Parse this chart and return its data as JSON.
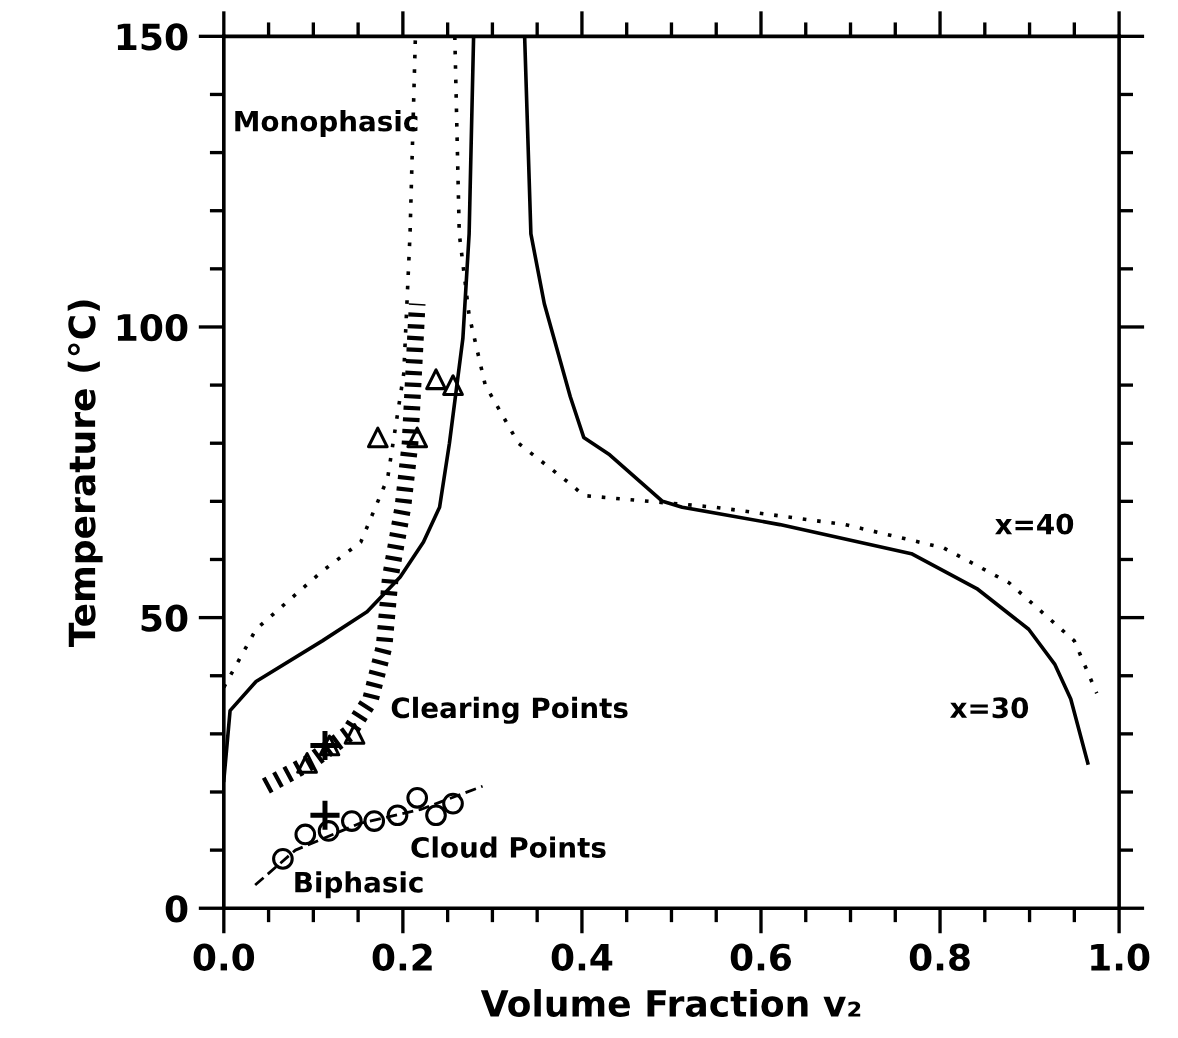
{
  "chart_data": {
    "type": "line",
    "xlabel": "Volume Fraction v₂",
    "ylabel": "Temperature (°C)",
    "xlim": [
      0,
      1.0
    ],
    "ylim": [
      0,
      150
    ],
    "xticks": [
      {
        "value": 0,
        "label": "0.0"
      },
      {
        "value": 0.05,
        "label": null
      },
      {
        "value": 0.1,
        "label": null
      },
      {
        "value": 0.15,
        "label": null
      },
      {
        "value": 0.2,
        "label": "0.2"
      },
      {
        "value": 0.25,
        "label": null
      },
      {
        "value": 0.3,
        "label": null
      },
      {
        "value": 0.35,
        "label": null
      },
      {
        "value": 0.4,
        "label": "0.4"
      },
      {
        "value": 0.45,
        "label": null
      },
      {
        "value": 0.5,
        "label": null
      },
      {
        "value": 0.55,
        "label": null
      },
      {
        "value": 0.6,
        "label": "0.6"
      },
      {
        "value": 0.65,
        "label": null
      },
      {
        "value": 0.7,
        "label": null
      },
      {
        "value": 0.75,
        "label": null
      },
      {
        "value": 0.8,
        "label": "0.8"
      },
      {
        "value": 0.85,
        "label": null
      },
      {
        "value": 0.9,
        "label": null
      },
      {
        "value": 0.95,
        "label": null
      },
      {
        "value": 1.0,
        "label": "1.0"
      }
    ],
    "yticks": [
      0,
      {
        "value": 10,
        "label": null
      },
      {
        "value": 20,
        "label": null
      },
      {
        "value": 30,
        "label": null
      },
      {
        "value": 40,
        "label": null
      },
      50,
      {
        "value": 60,
        "label": null
      },
      {
        "value": 70,
        "label": null
      },
      {
        "value": 80,
        "label": null
      },
      {
        "value": 90,
        "label": null
      },
      100,
      {
        "value": 110,
        "label": null
      },
      {
        "value": 120,
        "label": null
      },
      {
        "value": 130,
        "label": null
      },
      {
        "value": 140,
        "label": null
      },
      150
    ],
    "grid": false,
    "series": [
      {
        "name": "x=30",
        "color": "#000000",
        "line_style": "solid",
        "x": [
          0.0,
          0.007,
          0.036,
          0.11,
          0.16,
          0.197,
          0.223,
          0.241,
          0.252,
          0.267,
          0.274,
          0.279,
          null,
          0.336,
          0.343,
          0.358,
          0.387,
          0.402,
          0.431,
          0.49,
          0.512,
          0.621,
          0.768,
          0.841,
          0.899,
          0.928,
          0.946,
          0.965
        ],
        "values": [
          22,
          34,
          39,
          46,
          51,
          57,
          63,
          69,
          80,
          98,
          116,
          150,
          null,
          150,
          116,
          104,
          88,
          81,
          78,
          70,
          69,
          66,
          61,
          55,
          48,
          42,
          36,
          25
        ]
      },
      {
        "name": "x=40",
        "color": "#000000",
        "line_style": "dotted",
        "x": [
          0.0,
          0.036,
          0.11,
          0.153,
          0.183,
          0.201,
          0.208,
          0.214,
          null,
          0.258,
          0.263,
          0.274,
          0.292,
          0.329,
          0.387,
          0.402,
          0.475,
          0.548,
          0.694,
          0.804,
          0.877,
          0.95,
          0.975
        ],
        "values": [
          38,
          48,
          58,
          63,
          74,
          92,
          116,
          150,
          null,
          150,
          116,
          102,
          90,
          80,
          73,
          71,
          70,
          69,
          66,
          62,
          56,
          46,
          37
        ]
      },
      {
        "color": "#000000",
        "line_style": "hatched",
        "x": [
          0.047,
          0.095,
          0.139,
          0.164,
          0.179,
          0.186,
          0.2,
          0.208,
          0.216
        ],
        "values": [
          21,
          25,
          30,
          36,
          45,
          57,
          69,
          80,
          104
        ]
      },
      {
        "color": "#000000",
        "line_style": "dashed",
        "x": [
          0.035,
          0.08,
          0.15,
          0.22,
          0.289
        ],
        "values": [
          4,
          10,
          14.5,
          17,
          21
        ]
      },
      {
        "type": "scatter",
        "color": "#000000",
        "marker": "triangle",
        "x": [
          0.093,
          0.118,
          0.146,
          0.172,
          0.216,
          0.237,
          0.256
        ],
        "values": [
          25,
          28,
          30,
          81,
          81,
          91,
          90
        ]
      },
      {
        "type": "scatter",
        "color": "#000000",
        "marker": "cross",
        "x": [
          0.113,
          0.113
        ],
        "values": [
          28,
          16
        ]
      },
      {
        "type": "scatter",
        "color": "#000000",
        "marker": "circle",
        "x": [
          0.066,
          0.091,
          0.117,
          0.143,
          0.168,
          0.194,
          0.216,
          0.237,
          0.256
        ],
        "values": [
          8.5,
          12.7,
          13.3,
          15,
          15,
          16,
          19,
          16,
          18
        ]
      }
    ],
    "annotations": [
      "Monophasic",
      "Clearing Points",
      "Cloud Points",
      "Biphasic"
    ]
  }
}
